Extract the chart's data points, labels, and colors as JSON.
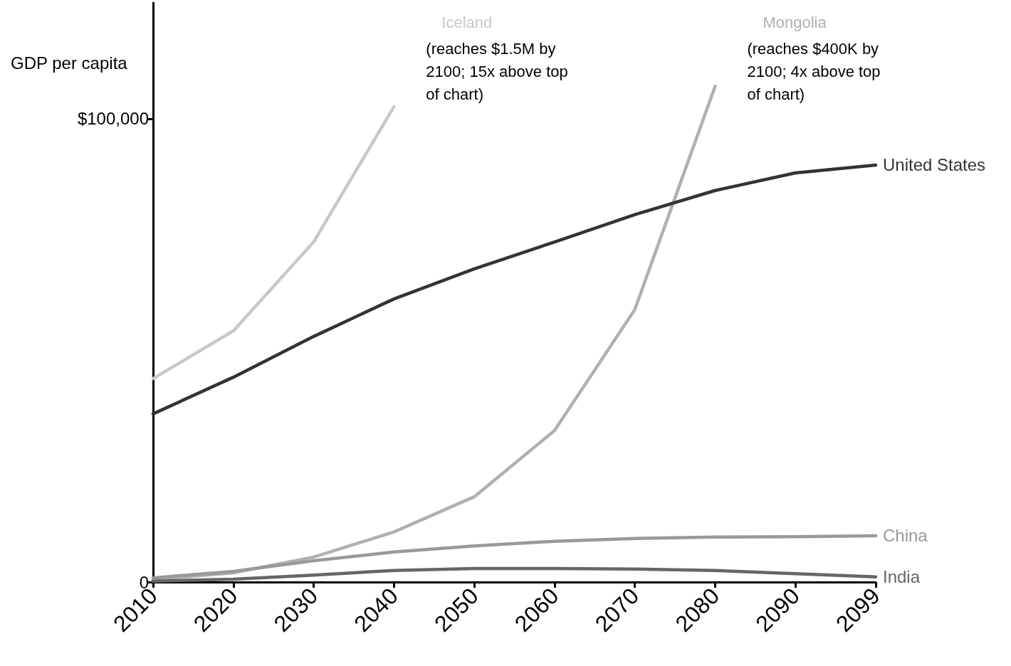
{
  "chart_data": {
    "type": "line",
    "ylabel": "GDP per capita",
    "categories": [
      "2010",
      "2020",
      "2030",
      "2040",
      "2050",
      "2060",
      "2070",
      "2080",
      "2090",
      "2099"
    ],
    "ylim": [
      0,
      125000
    ],
    "yticks": [
      0,
      {
        "value": 100000,
        "label": "$100,000"
      }
    ],
    "grid": false,
    "legend": false,
    "marker": "none",
    "line_style": "solid",
    "series": [
      {
        "name": "Iceland",
        "color": "#c8c8c8",
        "values": [
          43900,
          54200,
          73400,
          102600,
          null,
          null,
          null,
          null,
          null,
          null
        ]
      },
      {
        "name": "Mongolia",
        "color": "#b0b0b0",
        "values": [
          500,
          2000,
          5400,
          10800,
          18400,
          32700,
          58800,
          107000,
          null,
          null
        ]
      },
      {
        "name": "United States",
        "color": "#333333",
        "values": [
          36300,
          44200,
          53000,
          61100,
          67600,
          73400,
          79300,
          84500,
          88300,
          90000
        ]
      },
      {
        "name": "China",
        "color": "#999999",
        "values": [
          900,
          2300,
          4600,
          6500,
          7800,
          8800,
          9400,
          9700,
          9800,
          10000
        ]
      },
      {
        "name": "India",
        "color": "#666666",
        "values": [
          200,
          600,
          1500,
          2500,
          2900,
          2900,
          2800,
          2500,
          1800,
          1100
        ]
      }
    ],
    "annotations": [
      "(reaches $1.5M by 2100; 15x above top of chart)",
      "(reaches $400K by 2100; 4x above top of chart)"
    ]
  }
}
